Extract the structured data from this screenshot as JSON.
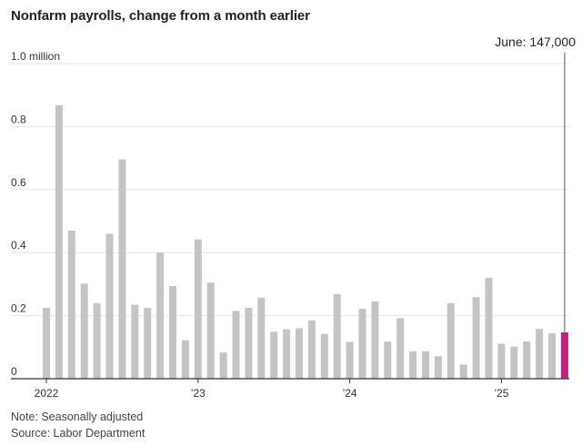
{
  "chart_data": {
    "type": "bar",
    "title": "Nonfarm payrolls, change from a month earlier",
    "xlabel": "",
    "ylabel": "",
    "ylim": [
      0,
      1.0
    ],
    "yticks": [
      {
        "value": 0,
        "label": "0"
      },
      {
        "value": 0.2,
        "label": "0.2"
      },
      {
        "value": 0.4,
        "label": "0.4"
      },
      {
        "value": 0.6,
        "label": "0.6"
      },
      {
        "value": 0.8,
        "label": "0.8"
      },
      {
        "value": 1.0,
        "label": "1.0 million"
      }
    ],
    "xticks": [
      {
        "index": 0,
        "label": "2022"
      },
      {
        "index": 12,
        "label": "’23"
      },
      {
        "index": 24,
        "label": "’24"
      },
      {
        "index": 36,
        "label": "’25"
      }
    ],
    "categories": [
      "Jan 2022",
      "Feb 2022",
      "Mar 2022",
      "Apr 2022",
      "May 2022",
      "Jun 2022",
      "Jul 2022",
      "Aug 2022",
      "Sep 2022",
      "Oct 2022",
      "Nov 2022",
      "Dec 2022",
      "Jan 2023",
      "Feb 2023",
      "Mar 2023",
      "Apr 2023",
      "May 2023",
      "Jun 2023",
      "Jul 2023",
      "Aug 2023",
      "Sep 2023",
      "Oct 2023",
      "Nov 2023",
      "Dec 2023",
      "Jan 2024",
      "Feb 2024",
      "Mar 2024",
      "Apr 2024",
      "May 2024",
      "Jun 2024",
      "Jul 2024",
      "Aug 2024",
      "Sep 2024",
      "Oct 2024",
      "Nov 2024",
      "Dec 2024",
      "Jan 2025",
      "Feb 2025",
      "Mar 2025",
      "Apr 2025",
      "May 2025",
      "Jun 2025"
    ],
    "values": [
      0.225,
      0.868,
      0.47,
      0.302,
      0.24,
      0.46,
      0.696,
      0.235,
      0.225,
      0.4,
      0.294,
      0.122,
      0.442,
      0.305,
      0.083,
      0.215,
      0.225,
      0.257,
      0.149,
      0.157,
      0.16,
      0.185,
      0.142,
      0.268,
      0.117,
      0.222,
      0.245,
      0.118,
      0.192,
      0.087,
      0.087,
      0.071,
      0.24,
      0.045,
      0.259,
      0.32,
      0.111,
      0.102,
      0.118,
      0.158,
      0.144,
      0.147
    ],
    "colors": {
      "bar": "#c4c4c4",
      "highlight": "#c3237e",
      "grid": "#e6e6e6",
      "axis": "#333333",
      "marker": "#555555"
    },
    "highlight_index": 41,
    "annotation": {
      "text": "June: 147,000",
      "index": 41
    }
  },
  "footer": {
    "note": "Note: Seasonally adjusted",
    "source": "Source: Labor Department"
  }
}
